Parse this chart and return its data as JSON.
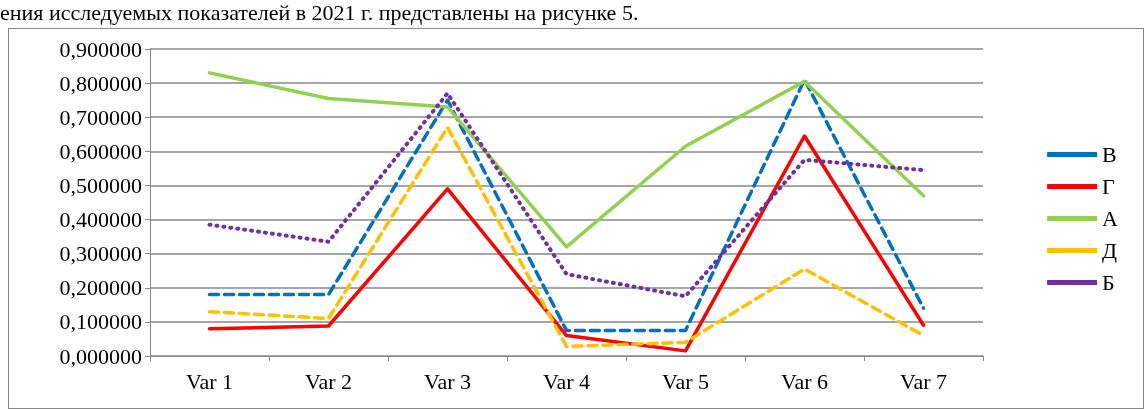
{
  "chart_data": {
    "type": "line",
    "annotations": [
      "ения исследуемых показателей в 2021 г. представлены на рисунке 5."
    ],
    "categories": [
      "Var 1",
      "Var 2",
      "Var 3",
      "Var 4",
      "Var 5",
      "Var 6",
      "Var 7"
    ],
    "series": [
      {
        "name": "В",
        "color": "#0070c0",
        "line_style": "dashed",
        "values": [
          0.18,
          0.18,
          0.75,
          0.075,
          0.075,
          0.81,
          0.14
        ]
      },
      {
        "name": "Г",
        "color": "#ff0000",
        "line_style": "solid",
        "values": [
          0.08,
          0.088,
          0.49,
          0.06,
          0.015,
          0.645,
          0.09
        ]
      },
      {
        "name": "А",
        "color": "#92d050",
        "line_style": "solid",
        "values": [
          0.83,
          0.755,
          0.73,
          0.32,
          0.615,
          0.805,
          0.47
        ]
      },
      {
        "name": "Д",
        "color": "#ffc000",
        "line_style": "dashed",
        "values": [
          0.13,
          0.11,
          0.67,
          0.028,
          0.04,
          0.255,
          0.06
        ]
      },
      {
        "name": "Б",
        "color": "#7030a0",
        "line_style": "dotted",
        "values": [
          0.385,
          0.335,
          0.77,
          0.24,
          0.175,
          0.575,
          0.545
        ]
      }
    ],
    "ylim": [
      0,
      0.9
    ],
    "yticks": [
      {
        "value": 0,
        "label": "0,000000"
      },
      {
        "value": 0.1,
        "label": "0,100000"
      },
      {
        "value": 0.2,
        "label": "0,200000"
      },
      {
        "value": 0.3,
        "label": "0,300000"
      },
      {
        "value": 0.4,
        "label": "0,400000"
      },
      {
        "value": 0.5,
        "label": "0,500000"
      },
      {
        "value": 0.6,
        "label": "0,600000"
      },
      {
        "value": 0.7,
        "label": "0,700000"
      },
      {
        "value": 0.8,
        "label": "0,800000"
      },
      {
        "value": 0.9,
        "label": "0,900000"
      }
    ],
    "grid": "y",
    "legend": "right",
    "marker": "none"
  }
}
